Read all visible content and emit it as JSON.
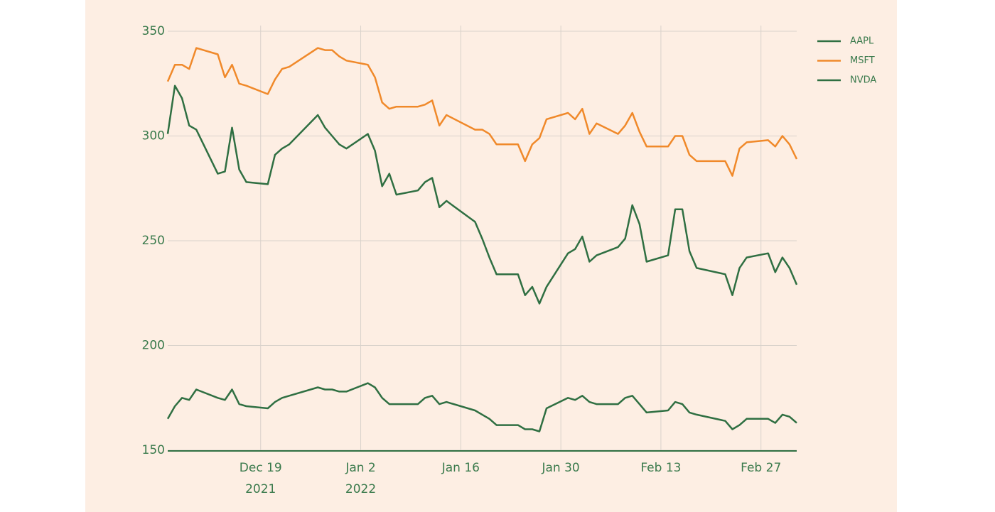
{
  "chart_data": {
    "type": "line",
    "x": [
      "2021-12-06",
      "2021-12-07",
      "2021-12-08",
      "2021-12-09",
      "2021-12-10",
      "2021-12-13",
      "2021-12-14",
      "2021-12-15",
      "2021-12-16",
      "2021-12-17",
      "2021-12-20",
      "2021-12-21",
      "2021-12-22",
      "2021-12-23",
      "2021-12-27",
      "2021-12-28",
      "2021-12-29",
      "2021-12-30",
      "2021-12-31",
      "2022-01-03",
      "2022-01-04",
      "2022-01-05",
      "2022-01-06",
      "2022-01-07",
      "2022-01-10",
      "2022-01-11",
      "2022-01-12",
      "2022-01-13",
      "2022-01-14",
      "2022-01-18",
      "2022-01-19",
      "2022-01-20",
      "2022-01-21",
      "2022-01-24",
      "2022-01-25",
      "2022-01-26",
      "2022-01-27",
      "2022-01-28",
      "2022-01-31",
      "2022-02-01",
      "2022-02-02",
      "2022-02-03",
      "2022-02-04",
      "2022-02-07",
      "2022-02-08",
      "2022-02-09",
      "2022-02-10",
      "2022-02-11",
      "2022-02-14",
      "2022-02-15",
      "2022-02-16",
      "2022-02-17",
      "2022-02-18",
      "2022-02-22",
      "2022-02-23",
      "2022-02-24",
      "2022-02-25",
      "2022-02-28",
      "2022-03-01",
      "2022-03-02",
      "2022-03-03",
      "2022-03-04"
    ],
    "series": [
      {
        "name": "AAPL",
        "color": "#2f6f42",
        "values": [
          165,
          171,
          175,
          174,
          179,
          175,
          174,
          179,
          172,
          171,
          170,
          173,
          175,
          176,
          180,
          179,
          179,
          178,
          178,
          182,
          180,
          175,
          172,
          172,
          172,
          175,
          176,
          172,
          173,
          169,
          167,
          165,
          162,
          162,
          160,
          160,
          159,
          170,
          175,
          174,
          176,
          173,
          172,
          172,
          175,
          176,
          172,
          168,
          169,
          173,
          172,
          168,
          167,
          164,
          160,
          162,
          165,
          165,
          163,
          167,
          166,
          163
        ]
      },
      {
        "name": "MSFT",
        "color": "#f0892a",
        "values": [
          326,
          334,
          334,
          332,
          342,
          339,
          328,
          334,
          325,
          324,
          320,
          327,
          332,
          333,
          342,
          341,
          341,
          338,
          336,
          334,
          328,
          316,
          313,
          314,
          314,
          315,
          317,
          305,
          310,
          303,
          303,
          301,
          296,
          296,
          288,
          296,
          299,
          308,
          311,
          308,
          313,
          301,
          306,
          301,
          305,
          311,
          302,
          295,
          295,
          300,
          300,
          291,
          288,
          288,
          281,
          294,
          297,
          298,
          295,
          300,
          296,
          289
        ]
      },
      {
        "name": "NVDA",
        "color": "#2f6f42",
        "values": [
          301,
          324,
          318,
          305,
          303,
          282,
          283,
          304,
          284,
          278,
          277,
          291,
          294,
          296,
          310,
          304,
          300,
          296,
          294,
          301,
          293,
          276,
          282,
          272,
          274,
          278,
          280,
          266,
          269,
          259,
          251,
          242,
          234,
          234,
          224,
          228,
          220,
          228,
          244,
          246,
          252,
          240,
          243,
          247,
          251,
          267,
          258,
          240,
          243,
          265,
          265,
          245,
          237,
          234,
          224,
          237,
          242,
          244,
          235,
          242,
          237,
          229
        ]
      }
    ],
    "xlim": [
      "2021-12-06",
      "2022-03-04"
    ],
    "xticks": [
      {
        "value": "2021-12-19",
        "label": "Dec 19\n2021"
      },
      {
        "value": "2022-01-02",
        "label": "Jan 2\n2022"
      },
      {
        "value": "2022-01-16",
        "label": "Jan 16"
      },
      {
        "value": "2022-01-30",
        "label": "Jan 30"
      },
      {
        "value": "2022-02-13",
        "label": "Feb 13"
      },
      {
        "value": "2022-02-27",
        "label": "Feb 27"
      }
    ],
    "ylim": [
      150,
      350
    ],
    "yticks": [
      150,
      200,
      250,
      300,
      350
    ],
    "grid": true,
    "legend": "right"
  }
}
